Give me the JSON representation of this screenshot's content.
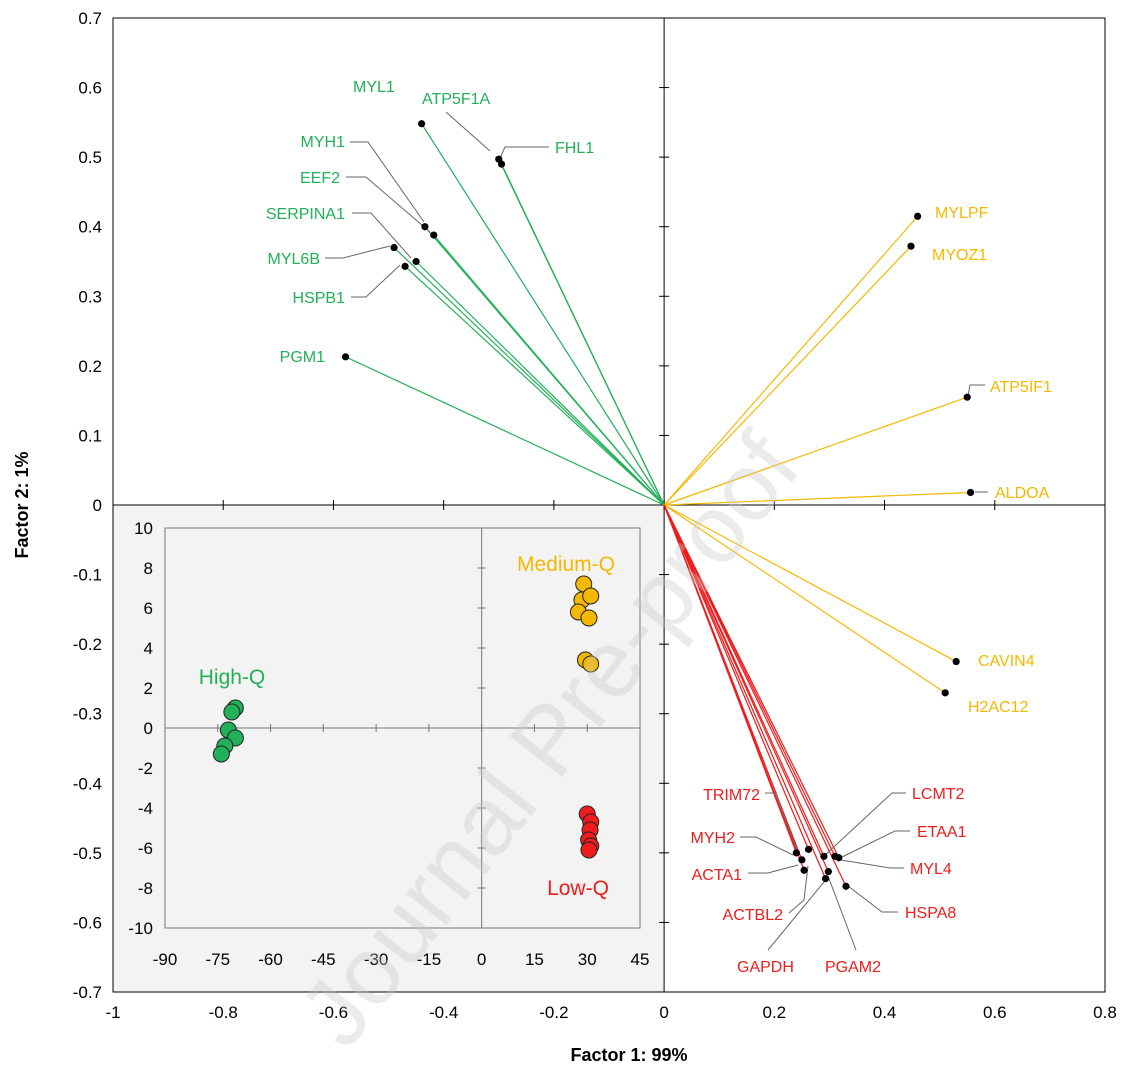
{
  "chart_data": [
    {
      "type": "biplot-loadings",
      "xlabel": "Factor 1: 99%",
      "ylabel": "Factor 2: 1%",
      "xlim": [
        -1,
        0.8
      ],
      "ylim": [
        -0.7,
        0.7
      ],
      "x_ticks": [
        "-1",
        "-0.8",
        "-0.6",
        "-0.4",
        "-0.2",
        "0",
        "0.2",
        "0.4",
        "0.6",
        "0.8"
      ],
      "y_ticks": [
        "0.7",
        "0.6",
        "0.5",
        "0.4",
        "0.3",
        "0.2",
        "0.1",
        "0",
        "-0.1",
        "-0.2",
        "-0.3",
        "-0.4",
        "-0.5",
        "-0.6",
        "-0.7"
      ],
      "colors": {
        "High": "#22b058",
        "Medium": "#f5b800",
        "Low": "#ee1c1c"
      },
      "loadings": [
        {
          "name": "MYL1",
          "x": -0.44,
          "y": 0.548,
          "group": "High"
        },
        {
          "name": "ATP5F1A",
          "x": -0.3,
          "y": 0.497,
          "group": "High"
        },
        {
          "name": "FHL1",
          "x": -0.295,
          "y": 0.49,
          "group": "High"
        },
        {
          "name": "MYH1",
          "x": -0.434,
          "y": 0.4,
          "group": "High"
        },
        {
          "name": "EEF2",
          "x": -0.418,
          "y": 0.388,
          "group": "High"
        },
        {
          "name": "SERPINA1",
          "x": -0.45,
          "y": 0.35,
          "group": "High"
        },
        {
          "name": "MYL6B",
          "x": -0.49,
          "y": 0.37,
          "group": "High"
        },
        {
          "name": "HSPB1",
          "x": -0.47,
          "y": 0.343,
          "group": "High"
        },
        {
          "name": "PGM1",
          "x": -0.578,
          "y": 0.213,
          "group": "High"
        },
        {
          "name": "MYLPF",
          "x": 0.46,
          "y": 0.415,
          "group": "Medium"
        },
        {
          "name": "MYOZ1",
          "x": 0.448,
          "y": 0.372,
          "group": "Medium"
        },
        {
          "name": "ATP5IF1",
          "x": 0.55,
          "y": 0.155,
          "group": "Medium"
        },
        {
          "name": "ALDOA",
          "x": 0.556,
          "y": 0.018,
          "group": "Medium"
        },
        {
          "name": "CAVIN4",
          "x": 0.53,
          "y": -0.225,
          "group": "Medium"
        },
        {
          "name": "H2AC12",
          "x": 0.51,
          "y": -0.27,
          "group": "Medium"
        },
        {
          "name": "TRIM72",
          "x": 0.24,
          "y": -0.5,
          "group": "Low"
        },
        {
          "name": "MYH2",
          "x": 0.25,
          "y": -0.51,
          "group": "Low"
        },
        {
          "name": "ACTA1",
          "x": 0.254,
          "y": -0.525,
          "group": "Low"
        },
        {
          "name": "ACTBL2",
          "x": 0.262,
          "y": -0.495,
          "group": "Low"
        },
        {
          "name": "GAPDH",
          "x": 0.293,
          "y": -0.537,
          "group": "Low"
        },
        {
          "name": "PGAM2",
          "x": 0.298,
          "y": -0.527,
          "group": "Low"
        },
        {
          "name": "LCMT2",
          "x": 0.29,
          "y": -0.505,
          "group": "Low"
        },
        {
          "name": "ETAA1",
          "x": 0.31,
          "y": -0.505,
          "group": "Low"
        },
        {
          "name": "MYL4",
          "x": 0.317,
          "y": -0.507,
          "group": "Low"
        },
        {
          "name": "HSPA8",
          "x": 0.33,
          "y": -0.548,
          "group": "Low"
        }
      ]
    },
    {
      "type": "scatter",
      "xlim": [
        -90,
        45
      ],
      "ylim": [
        -10,
        10
      ],
      "x_ticks": [
        "-90",
        "-75",
        "-60",
        "-45",
        "-30",
        "-15",
        "0",
        "15",
        "30",
        "45"
      ],
      "y_ticks": [
        "10",
        "8",
        "6",
        "4",
        "2",
        "0",
        "-2",
        "-4",
        "-6",
        "-8",
        "-10"
      ],
      "groups": [
        {
          "label": "High-Q",
          "color": "#22b058",
          "points": [
            [
              -70,
              1
            ],
            [
              -71,
              0.8
            ],
            [
              -72,
              -0.1
            ],
            [
              -70,
              -0.5
            ],
            [
              -73,
              -0.9
            ],
            [
              -74,
              -1.3
            ]
          ]
        },
        {
          "label": "Medium-Q",
          "color": "#f5b800",
          "points": [
            [
              29,
              7.2
            ],
            [
              28.5,
              6.4
            ],
            [
              31,
              6.6
            ],
            [
              27.5,
              5.8
            ],
            [
              30.5,
              5.5
            ],
            [
              29.5,
              3.4
            ],
            [
              31,
              3.2
            ]
          ]
        },
        {
          "label": "Low-Q",
          "color": "#ee1c1c",
          "points": [
            [
              30,
              -4.3
            ],
            [
              31,
              -4.7
            ],
            [
              30.8,
              -5.1
            ],
            [
              30.4,
              -5.6
            ],
            [
              31,
              -5.9
            ],
            [
              30.5,
              -6.1
            ]
          ]
        }
      ]
    }
  ],
  "watermark": "Journal Pre-proof"
}
